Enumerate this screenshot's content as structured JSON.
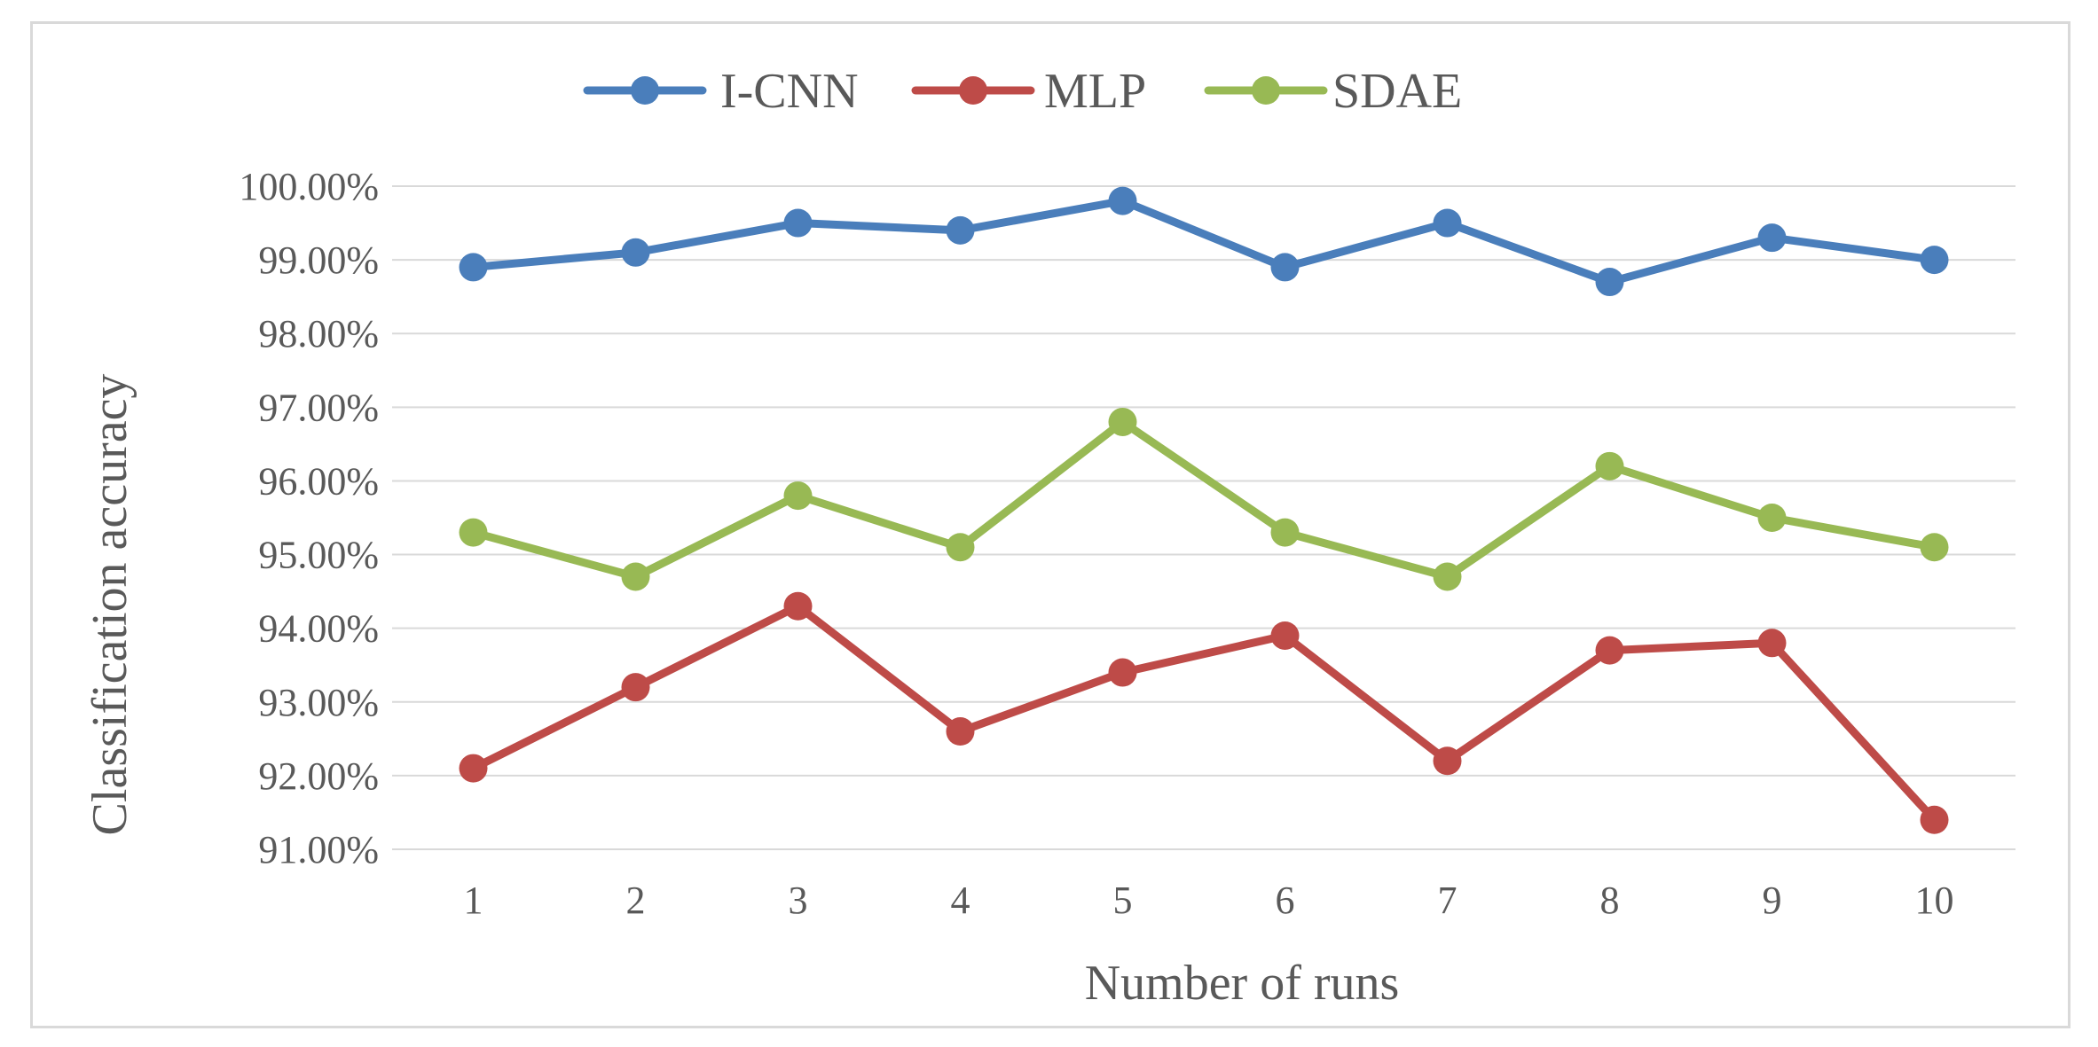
{
  "chart_data": {
    "type": "line",
    "title": "",
    "xlabel": "Number of runs",
    "ylabel": "Classification accuracy",
    "categories": [
      "1",
      "2",
      "3",
      "4",
      "5",
      "6",
      "7",
      "8",
      "9",
      "10"
    ],
    "ylim": [
      91,
      100
    ],
    "yticks": [
      "91.00%",
      "92.00%",
      "93.00%",
      "94.00%",
      "95.00%",
      "96.00%",
      "97.00%",
      "98.00%",
      "99.00%",
      "100.00%"
    ],
    "grid": true,
    "legend_position": "top",
    "series": [
      {
        "name": "I-CNN",
        "color": "#4a7ebb",
        "values": [
          98.9,
          99.1,
          99.5,
          99.4,
          99.8,
          98.9,
          99.5,
          98.7,
          99.3,
          99.0
        ]
      },
      {
        "name": "MLP",
        "color": "#be4b48",
        "values": [
          92.1,
          93.2,
          94.3,
          92.6,
          93.4,
          93.9,
          92.2,
          93.7,
          93.8,
          91.4
        ]
      },
      {
        "name": "SDAE",
        "color": "#98b954",
        "values": [
          95.3,
          94.7,
          95.8,
          95.1,
          96.8,
          95.3,
          94.7,
          96.2,
          95.5,
          95.1
        ]
      }
    ]
  }
}
